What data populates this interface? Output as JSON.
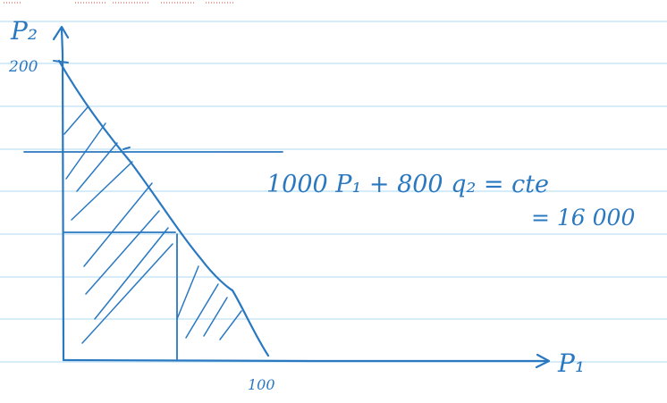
{
  "labels": {
    "y_axis": "P₂",
    "x_axis": "P₁",
    "y_intercept": "200",
    "x_intercept": "100",
    "equation_line1": "1000 P₁ + 800 q₂ = cte",
    "equation_line2": "= 16 000"
  },
  "colors": {
    "ink": "#2a78c0",
    "ruled_line": "#bfe0f5",
    "margin_marks": "#e53935"
  }
}
